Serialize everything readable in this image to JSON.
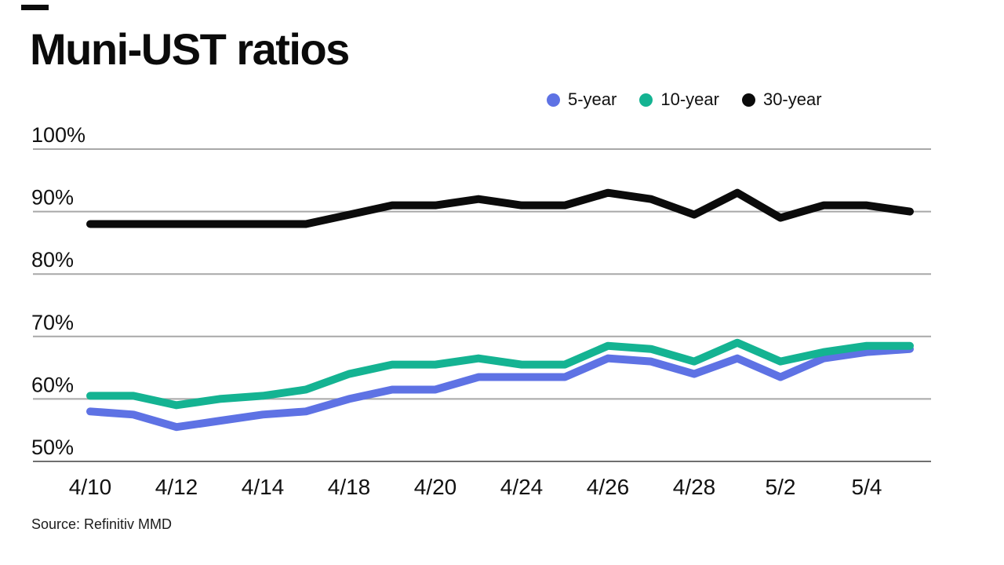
{
  "chart_data": {
    "type": "line",
    "title": "Muni-UST ratios",
    "x": [
      "4/10",
      "4/11",
      "4/12",
      "4/13",
      "4/14",
      "4/17",
      "4/18",
      "4/19",
      "4/20",
      "4/21",
      "4/24",
      "4/25",
      "4/26",
      "4/27",
      "4/28",
      "5/1",
      "5/2",
      "5/3",
      "5/4",
      "5/5"
    ],
    "x_tick_indices": [
      0,
      2,
      4,
      6,
      8,
      10,
      12,
      14,
      16,
      18
    ],
    "x_tick_labels": [
      "4/10",
      "4/12",
      "4/14",
      "4/18",
      "4/20",
      "4/24",
      "4/26",
      "4/28",
      "5/2",
      "5/4"
    ],
    "series": [
      {
        "name": "5-year",
        "color": "#5E72E4",
        "values": [
          58,
          57.5,
          55.5,
          56.5,
          57.5,
          58,
          60,
          61.5,
          61.5,
          63.5,
          63.5,
          63.5,
          66.5,
          66,
          64,
          66.5,
          63.5,
          66.5,
          67.5,
          68
        ]
      },
      {
        "name": "10-year",
        "color": "#14B392",
        "values": [
          60.5,
          60.5,
          59,
          60,
          60.5,
          61.5,
          64,
          65.5,
          65.5,
          66.5,
          65.5,
          65.5,
          68.5,
          68,
          66,
          69,
          66,
          67.5,
          68.5,
          68.5
        ]
      },
      {
        "name": "30-year",
        "color": "#0b0b0b",
        "values": [
          88,
          88,
          88,
          88,
          88,
          88,
          89.5,
          91,
          91,
          92,
          91,
          91,
          93,
          92,
          89.5,
          93,
          89,
          91,
          91,
          90
        ]
      }
    ],
    "ylim": [
      50,
      100
    ],
    "yticks": [
      100,
      90,
      80,
      70,
      60,
      50
    ],
    "ytick_labels": [
      "100%",
      "90%",
      "80%",
      "70%",
      "60%",
      "50%"
    ],
    "grid": "horizontal",
    "legend_position": "top-right",
    "unit": "%"
  },
  "source": {
    "label": "Source: Refinitiv MMD"
  }
}
